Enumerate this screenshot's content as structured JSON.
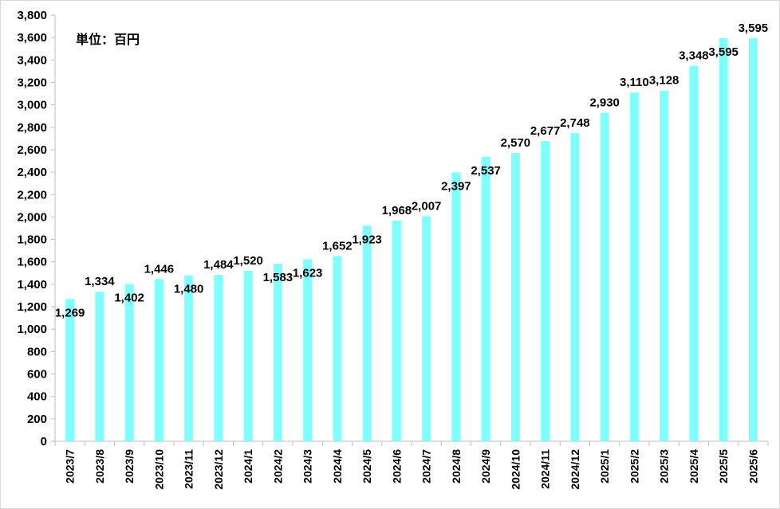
{
  "chart_data": {
    "type": "bar",
    "title": "",
    "unit_label": "単位：百円",
    "xlabel": "",
    "ylabel": "",
    "ylim": [
      0,
      3800
    ],
    "ytick_step": 200,
    "grid": false,
    "bar_color": "#80FFFF",
    "categories": [
      "2023/7",
      "2023/8",
      "2023/9",
      "2023/10",
      "2023/11",
      "2023/12",
      "2024/1",
      "2024/2",
      "2024/3",
      "2024/4",
      "2024/5",
      "2024/6",
      "2024/7",
      "2024/8",
      "2024/9",
      "2024/10",
      "2024/11",
      "2024/12",
      "2025/1",
      "2025/2",
      "2025/3",
      "2025/4",
      "2025/5",
      "2025/6"
    ],
    "values": [
      1269,
      1334,
      1402,
      1446,
      1480,
      1484,
      1520,
      1583,
      1623,
      1652,
      1923,
      1968,
      2007,
      2397,
      2537,
      2570,
      2677,
      2748,
      2930,
      3110,
      3128,
      3348,
      3595,
      3595
    ],
    "data_labels": [
      "1,269",
      "1,334",
      "1,402",
      "1,446",
      "1,480",
      "1,484",
      "1,520",
      "1,583",
      "1,623",
      "1,652",
      "1,923",
      "1,968",
      "2,007",
      "2,397",
      "2,537",
      "2,570",
      "2,677",
      "2,748",
      "2,930",
      "3,110",
      "3,128",
      "3,348",
      "3,595",
      "3,595"
    ],
    "label_positions": [
      "below",
      "above",
      "below",
      "above",
      "below",
      "above",
      "above",
      "below",
      "below",
      "above",
      "below",
      "above",
      "above",
      "below",
      "below",
      "above",
      "above",
      "above",
      "above",
      "above",
      "above",
      "above",
      "below",
      "above"
    ],
    "ytick_labels": [
      "0",
      "200",
      "400",
      "600",
      "800",
      "1,000",
      "1,200",
      "1,400",
      "1,600",
      "1,800",
      "2,000",
      "2,200",
      "2,400",
      "2,600",
      "2,800",
      "3,000",
      "3,200",
      "3,400",
      "3,600",
      "3,800"
    ]
  }
}
